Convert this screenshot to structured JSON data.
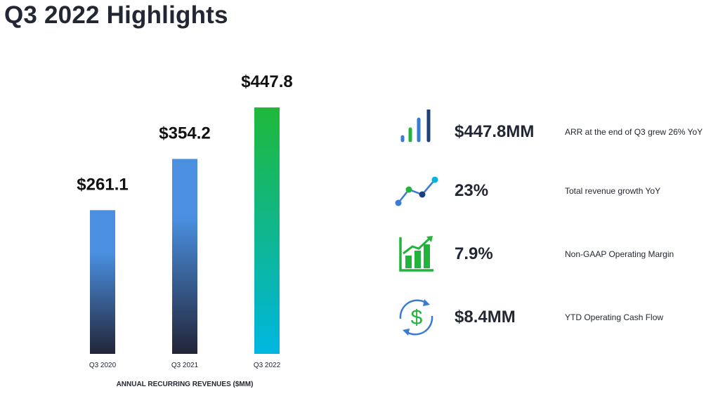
{
  "title": "Q3 2022 Highlights",
  "colors": {
    "text": "#222733",
    "bar_dark": "#222538",
    "bar_blue": "#4a8fe0",
    "bar_green": "#1fb83a",
    "bar_cyan": "#00b6e0",
    "icon_blue": "#3a7bd5",
    "icon_green": "#22b33c",
    "icon_navy": "#1d3f7a"
  },
  "chart_data": {
    "type": "bar",
    "title": "",
    "xlabel": "ANNUAL RECURRING REVENUES ($MM)",
    "ylabel": "",
    "categories": [
      "Q3 2020",
      "Q3 2021",
      "Q3 2022"
    ],
    "values": [
      261.1,
      354.2,
      447.8
    ],
    "value_labels": [
      "$261.1",
      "$354.2",
      "$447.8"
    ],
    "ylim": [
      0,
      480
    ],
    "grid": false,
    "legend": "none"
  },
  "metrics": [
    {
      "icon": "bar-chart-icon",
      "value": "$447.8MM",
      "description": "ARR at the end of Q3 grew 26% YoY"
    },
    {
      "icon": "trend-line-icon",
      "value": "23%",
      "description": "Total revenue growth YoY"
    },
    {
      "icon": "growth-chart-icon",
      "value": "7.9%",
      "description": "Non-GAAP Operating Margin"
    },
    {
      "icon": "dollar-cycle-icon",
      "value": "$8.4MM",
      "description": "YTD Operating Cash Flow"
    }
  ]
}
